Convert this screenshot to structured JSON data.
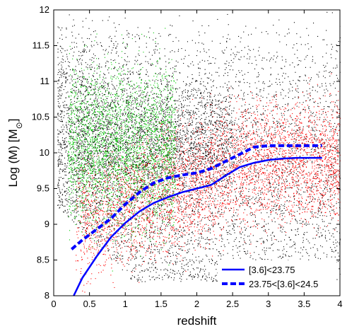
{
  "chart_data": {
    "type": "scatter",
    "xlabel": "redshift",
    "ylabel_main": "Log (M) [M",
    "ylabel_sub": "⊙",
    "ylabel_close": "]",
    "xlim": [
      0,
      4
    ],
    "ylim": [
      8,
      12
    ],
    "xticks": [
      "0",
      "0.5",
      "1",
      "1.5",
      "2",
      "2.5",
      "3",
      "3.5",
      "4"
    ],
    "yticks": [
      "8",
      "8.5",
      "9",
      "9.5",
      "10",
      "10.5",
      "11",
      "11.5",
      "12"
    ],
    "grid": false,
    "legend_position": "bottom-right",
    "scatter_populations": [
      {
        "color": "#000000",
        "description_range_x": [
          0.05,
          4.0
        ],
        "description_range_y": [
          8.0,
          12.0
        ]
      },
      {
        "color": "#ff0000",
        "description_range_x": [
          0.3,
          4.0
        ],
        "description_range_y": [
          8.0,
          11.0
        ]
      },
      {
        "color": "#00cc00",
        "description_range_x": [
          0.2,
          1.7
        ],
        "description_range_y": [
          8.6,
          11.5
        ]
      }
    ],
    "series": [
      {
        "name": "[3.6]<23.75",
        "style": "solid",
        "color": "#0000ff",
        "x": [
          0.28,
          0.4,
          0.6,
          0.8,
          1.0,
          1.2,
          1.4,
          1.6,
          1.8,
          2.0,
          2.2,
          2.4,
          2.6,
          2.8,
          3.0,
          3.2,
          3.4,
          3.6,
          3.75
        ],
        "y": [
          8.0,
          8.25,
          8.55,
          8.82,
          9.02,
          9.18,
          9.3,
          9.38,
          9.45,
          9.5,
          9.55,
          9.68,
          9.8,
          9.86,
          9.9,
          9.92,
          9.93,
          9.93,
          9.93
        ]
      },
      {
        "name": "23.75<[3.6]<24.5",
        "style": "dashed",
        "color": "#0000ff",
        "x": [
          0.25,
          0.4,
          0.6,
          0.8,
          1.0,
          1.2,
          1.4,
          1.6,
          1.8,
          2.0,
          2.2,
          2.4,
          2.6,
          2.8,
          3.0,
          3.2,
          3.4,
          3.6,
          3.75
        ],
        "y": [
          8.65,
          8.78,
          8.93,
          9.08,
          9.28,
          9.45,
          9.58,
          9.65,
          9.69,
          9.72,
          9.78,
          9.88,
          9.98,
          10.08,
          10.1,
          10.1,
          10.1,
          10.1,
          10.1
        ]
      }
    ]
  }
}
